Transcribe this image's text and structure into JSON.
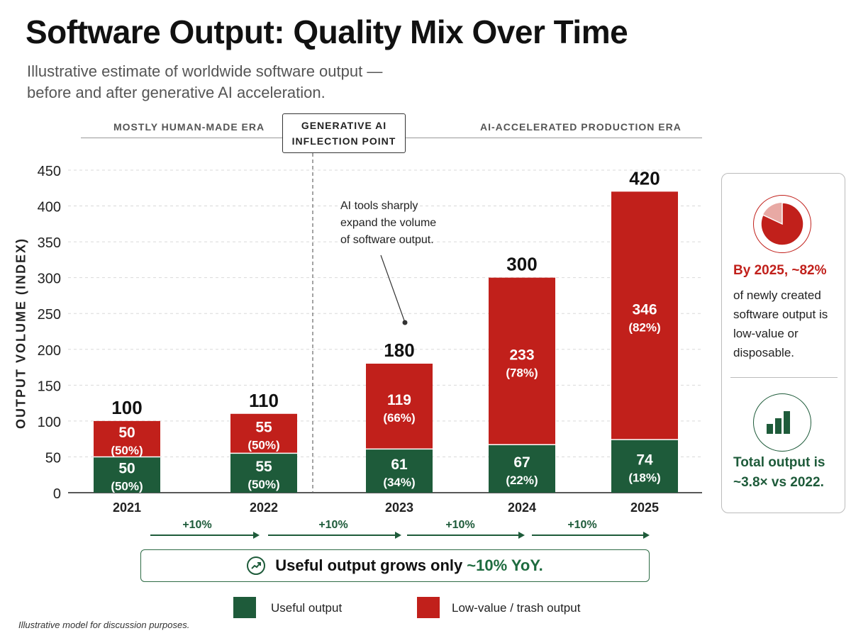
{
  "header": {
    "title": "Software Output: Quality Mix Over Time",
    "subtitle_line1": "Illustrative estimate of worldwide software output —",
    "subtitle_line2": "before and after generative AI acceleration."
  },
  "eras": {
    "left": "MOSTLY HUMAN-MADE ERA",
    "middle_line1": "GENERATIVE AI",
    "middle_line2": "INFLECTION POINT",
    "right": "AI-ACCELERATED PRODUCTION ERA"
  },
  "annotation": {
    "line1": "AI tools sharply",
    "line2": "expand the volume",
    "line3": "of software output."
  },
  "growth": {
    "labels": [
      "+10%",
      "+10%",
      "+10%",
      "+10%"
    ],
    "banner_prefix": "Useful output grows only",
    "banner_highlight": "~10% YoY."
  },
  "legend": {
    "useful": "Useful output",
    "trash": "Low-value / trash output"
  },
  "footnote": "Illustrative model for discussion purposes.",
  "side_card": {
    "highlight1": "By 2025, ~82%",
    "text1_line1": "of newly created",
    "text1_line2": "software output is",
    "text1_line3": "low-value or",
    "text1_line4": "disposable.",
    "highlight2_line1": "Total output is",
    "highlight2_line2": "~3.8× vs 2022.",
    "pie_share": 0.82
  },
  "colors": {
    "useful": "#1e5b3a",
    "trash": "#c1201b",
    "grid": "#d9d9d9"
  },
  "chart_data": {
    "type": "bar",
    "stacked": true,
    "ylabel": "OUTPUT VOLUME (INDEX)",
    "ylim": [
      0,
      450
    ],
    "yticks": [
      0,
      50,
      100,
      150,
      200,
      250,
      300,
      350,
      400,
      450
    ],
    "categories": [
      "2021",
      "2022",
      "2023",
      "2024",
      "2025"
    ],
    "totals": [
      100,
      110,
      180,
      300,
      420
    ],
    "series": [
      {
        "name": "Useful output",
        "values": [
          50,
          55,
          61,
          67,
          74
        ],
        "pct_labels": [
          "(50%)",
          "(50%)",
          "(34%)",
          "(22%)",
          "(18%)"
        ]
      },
      {
        "name": "Low-value / trash output",
        "values": [
          50,
          55,
          119,
          233,
          346
        ],
        "pct_labels": [
          "(50%)",
          "(50%)",
          "(66%)",
          "(78%)",
          "(82%)"
        ]
      }
    ],
    "grid": true,
    "legend_position": "bottom"
  }
}
